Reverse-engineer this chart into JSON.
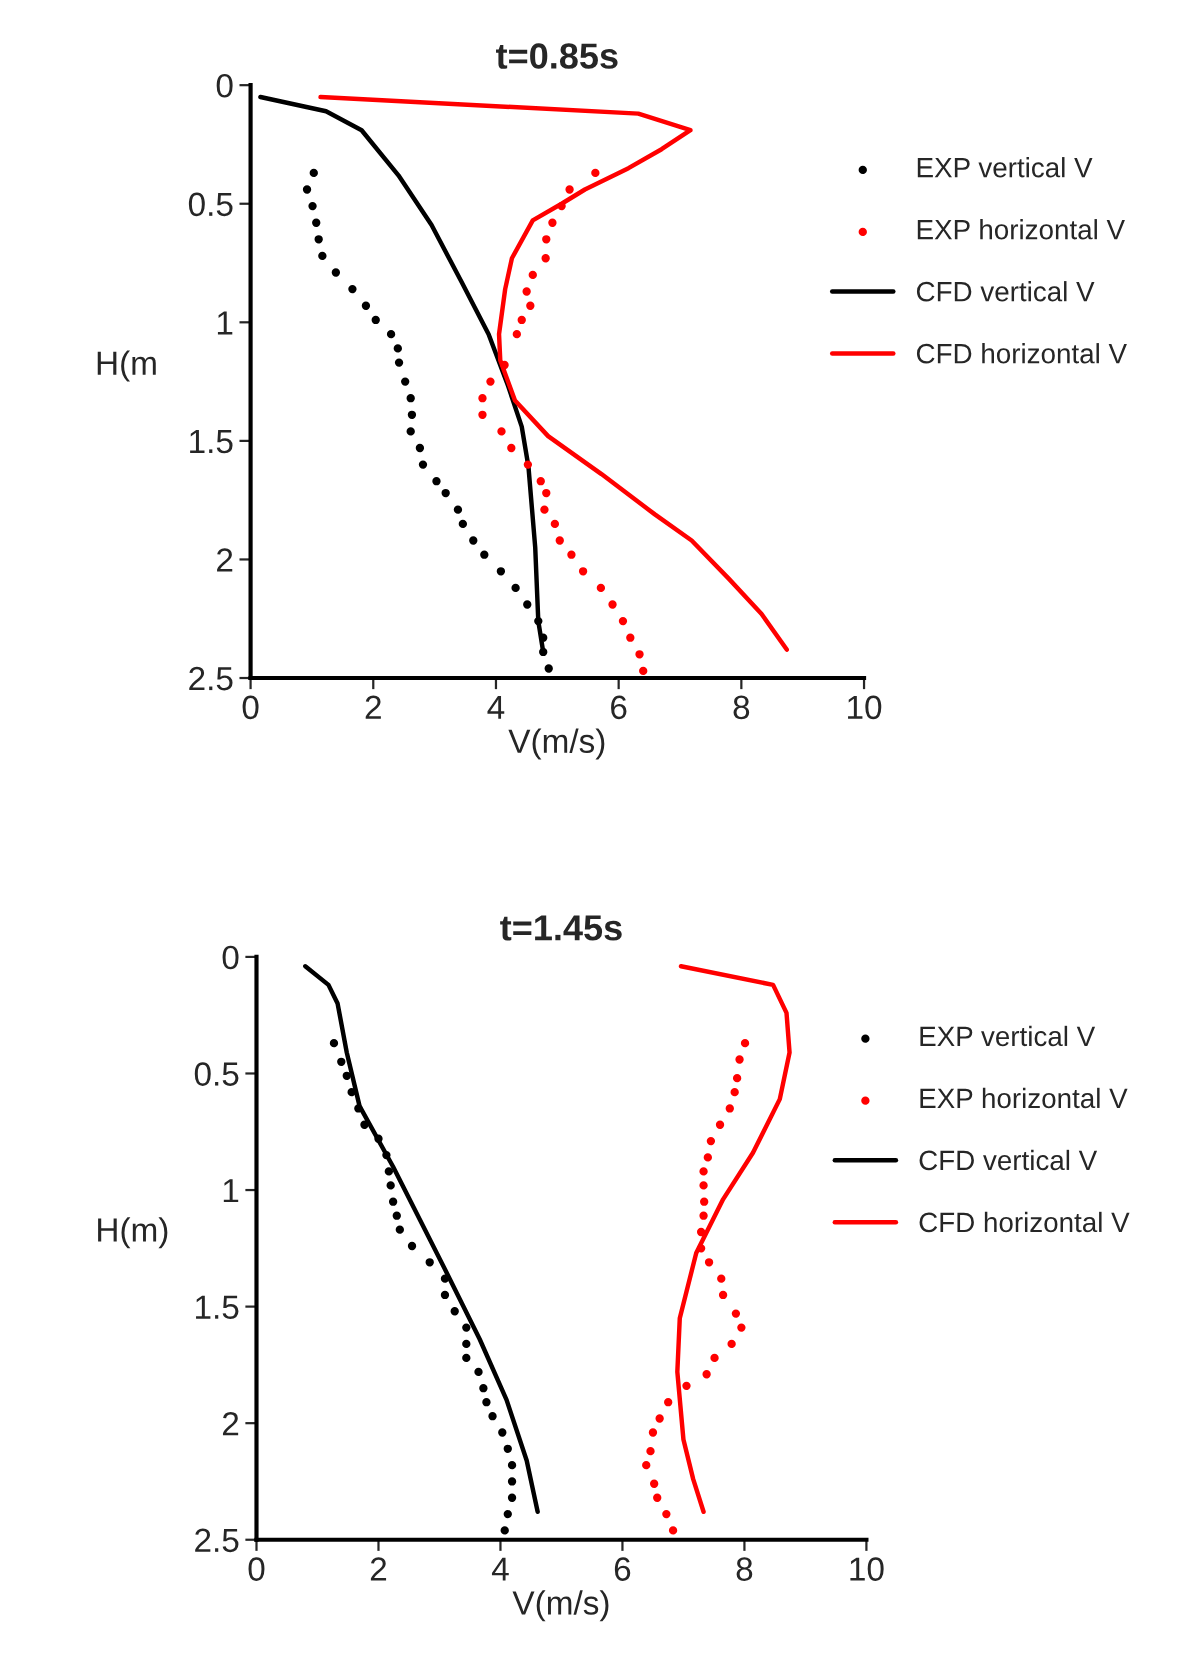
{
  "chart_data": [
    {
      "type": "line",
      "title": "t=0.85s",
      "xlabel": "V(m/s)",
      "ylabel": "H(m",
      "xlim": [
        0,
        10
      ],
      "xticks": [
        0,
        2,
        4,
        6,
        8,
        10
      ],
      "ylim": [
        2.5,
        0
      ],
      "yticks": [
        0,
        0.5,
        1,
        1.5,
        2,
        2.5
      ],
      "grid": false,
      "legend": "right",
      "series": [
        {
          "name": "EXP vertical V",
          "type": "scatter",
          "marker": "circle",
          "color": "#000000",
          "x": [
            1.03,
            0.92,
            1.01,
            1.07,
            1.11,
            1.17,
            1.39,
            1.66,
            1.88,
            2.04,
            2.29,
            2.4,
            2.42,
            2.52,
            2.61,
            2.63,
            2.61,
            2.76,
            2.81,
            3.03,
            3.18,
            3.38,
            3.46,
            3.63,
            3.81,
            4.08,
            4.32,
            4.51,
            4.69,
            4.77,
            4.77,
            4.86
          ],
          "values": [
            0.37,
            0.44,
            0.51,
            0.58,
            0.65,
            0.72,
            0.79,
            0.86,
            0.93,
            0.99,
            1.05,
            1.11,
            1.17,
            1.25,
            1.32,
            1.39,
            1.46,
            1.53,
            1.6,
            1.67,
            1.72,
            1.79,
            1.85,
            1.92,
            1.98,
            2.05,
            2.12,
            2.19,
            2.26,
            2.33,
            2.39,
            2.46
          ]
        },
        {
          "name": "EXP horizontal V",
          "type": "scatter",
          "marker": "circle",
          "color": "#ff0000",
          "x": [
            5.62,
            5.2,
            5.07,
            4.92,
            4.82,
            4.81,
            4.6,
            4.5,
            4.56,
            4.42,
            4.34,
            4.14,
            3.91,
            3.78,
            3.78,
            4.09,
            4.25,
            4.52,
            4.73,
            4.82,
            4.79,
            4.96,
            5.04,
            5.23,
            5.42,
            5.71,
            5.9,
            6.07,
            6.19,
            6.34,
            6.4
          ],
          "values": [
            0.37,
            0.44,
            0.51,
            0.58,
            0.65,
            0.73,
            0.8,
            0.87,
            0.93,
            0.99,
            1.05,
            1.18,
            1.25,
            1.32,
            1.39,
            1.46,
            1.53,
            1.6,
            1.67,
            1.72,
            1.79,
            1.85,
            1.92,
            1.98,
            2.05,
            2.12,
            2.19,
            2.26,
            2.33,
            2.4,
            2.47
          ]
        },
        {
          "name": "CFD vertical V",
          "line_style": "solid",
          "color": "#000000",
          "x": [
            0.16,
            1.23,
            1.81,
            2.41,
            2.95,
            3.44,
            3.88,
            4.2,
            4.42,
            4.53,
            4.64,
            4.69,
            4.77
          ],
          "values": [
            0.05,
            0.11,
            0.19,
            0.38,
            0.59,
            0.83,
            1.05,
            1.27,
            1.44,
            1.61,
            1.95,
            2.26,
            2.39
          ]
        },
        {
          "name": "CFD horizontal V",
          "line_style": "solid",
          "color": "#ff0000",
          "x": [
            1.14,
            6.32,
            7.17,
            6.7,
            6.16,
            5.45,
            5.07,
            4.6,
            4.26,
            4.15,
            4.05,
            4.07,
            4.31,
            4.85,
            5.72,
            6.59,
            7.19,
            7.79,
            8.33,
            8.74
          ],
          "values": [
            0.05,
            0.12,
            0.19,
            0.27,
            0.35,
            0.44,
            0.5,
            0.57,
            0.73,
            0.86,
            1.05,
            1.16,
            1.33,
            1.48,
            1.64,
            1.81,
            1.92,
            2.08,
            2.23,
            2.38
          ]
        }
      ]
    },
    {
      "type": "line",
      "title": "t=1.45s",
      "xlabel": "V(m/s)",
      "ylabel": "H(m)",
      "xlim": [
        0,
        10
      ],
      "xticks": [
        0,
        2,
        4,
        6,
        8,
        10
      ],
      "ylim": [
        2.5,
        0
      ],
      "yticks": [
        0,
        0.5,
        1,
        1.5,
        2,
        2.5
      ],
      "grid": false,
      "legend": "right",
      "series": [
        {
          "name": "EXP vertical V",
          "type": "scatter",
          "marker": "circle",
          "color": "#000000",
          "x": [
            1.27,
            1.39,
            1.48,
            1.56,
            1.67,
            1.77,
            2.0,
            2.13,
            2.17,
            2.2,
            2.24,
            2.3,
            2.35,
            2.55,
            2.84,
            3.09,
            3.09,
            3.25,
            3.44,
            3.44,
            3.44,
            3.64,
            3.72,
            3.77,
            3.87,
            4.03,
            4.12,
            4.19,
            4.19,
            4.19,
            4.12,
            4.07
          ],
          "values": [
            0.37,
            0.45,
            0.51,
            0.58,
            0.65,
            0.72,
            0.78,
            0.85,
            0.92,
            0.98,
            1.05,
            1.11,
            1.17,
            1.24,
            1.31,
            1.38,
            1.45,
            1.52,
            1.59,
            1.66,
            1.72,
            1.78,
            1.85,
            1.91,
            1.97,
            2.04,
            2.11,
            2.18,
            2.25,
            2.32,
            2.39,
            2.46
          ]
        },
        {
          "name": "EXP horizontal V",
          "type": "scatter",
          "marker": "circle",
          "color": "#ff0000",
          "x": [
            8.01,
            7.92,
            7.88,
            7.84,
            7.76,
            7.6,
            7.45,
            7.4,
            7.33,
            7.33,
            7.34,
            7.33,
            7.29,
            7.29,
            7.42,
            7.62,
            7.65,
            7.86,
            7.95,
            7.79,
            7.51,
            7.38,
            7.05,
            6.75,
            6.61,
            6.5,
            6.46,
            6.39,
            6.52,
            6.57,
            6.72,
            6.83
          ],
          "values": [
            0.37,
            0.44,
            0.52,
            0.58,
            0.65,
            0.72,
            0.79,
            0.86,
            0.92,
            0.98,
            1.05,
            1.11,
            1.18,
            1.25,
            1.31,
            1.38,
            1.45,
            1.53,
            1.59,
            1.66,
            1.72,
            1.79,
            1.84,
            1.91,
            1.98,
            2.04,
            2.12,
            2.18,
            2.26,
            2.32,
            2.39,
            2.46
          ]
        },
        {
          "name": "CFD vertical V",
          "line_style": "solid",
          "color": "#000000",
          "x": [
            0.8,
            1.18,
            1.33,
            1.48,
            1.69,
            2.24,
            3.11,
            3.66,
            4.1,
            4.43,
            4.61
          ],
          "values": [
            0.04,
            0.12,
            0.2,
            0.41,
            0.64,
            0.9,
            1.35,
            1.64,
            1.9,
            2.16,
            2.38
          ]
        },
        {
          "name": "CFD horizontal V",
          "line_style": "solid",
          "color": "#ff0000",
          "x": [
            6.96,
            8.47,
            8.69,
            8.74,
            8.58,
            8.14,
            7.65,
            7.21,
            6.94,
            6.9,
            7.0,
            7.16,
            7.33
          ],
          "values": [
            0.04,
            0.12,
            0.24,
            0.41,
            0.61,
            0.84,
            1.04,
            1.27,
            1.55,
            1.78,
            2.07,
            2.24,
            2.38
          ]
        }
      ]
    }
  ]
}
